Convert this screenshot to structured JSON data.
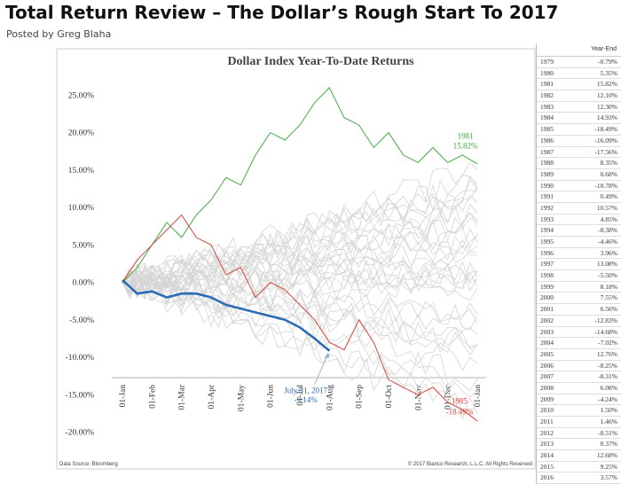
{
  "page": {
    "title": "Total Return Review – The Dollar’s Rough Start To 2017",
    "byline": "Posted by Greg Blaha"
  },
  "table": {
    "header": "Year-End",
    "rows": [
      {
        "year": "1979",
        "value": "-0.79%"
      },
      {
        "year": "1980",
        "value": "5.35%"
      },
      {
        "year": "1981",
        "value": "15.82%"
      },
      {
        "year": "1982",
        "value": "12.10%"
      },
      {
        "year": "1983",
        "value": "12.30%"
      },
      {
        "year": "1984",
        "value": "14.93%"
      },
      {
        "year": "1985",
        "value": "-18.49%"
      },
      {
        "year": "1986",
        "value": "-16.09%"
      },
      {
        "year": "1987",
        "value": "-17.56%"
      },
      {
        "year": "1988",
        "value": "8.35%"
      },
      {
        "year": "1989",
        "value": "0.68%"
      },
      {
        "year": "1990",
        "value": "-10.78%"
      },
      {
        "year": "1991",
        "value": "0.49%"
      },
      {
        "year": "1992",
        "value": "10.57%"
      },
      {
        "year": "1993",
        "value": "4.85%"
      },
      {
        "year": "1994",
        "value": "-8.38%"
      },
      {
        "year": "1995",
        "value": "-4.46%"
      },
      {
        "year": "1996",
        "value": "3.96%"
      },
      {
        "year": "1997",
        "value": "13.08%"
      },
      {
        "year": "1998",
        "value": "-5.50%"
      },
      {
        "year": "1999",
        "value": "8.18%"
      },
      {
        "year": "2000",
        "value": "7.55%"
      },
      {
        "year": "2001",
        "value": "6.56%"
      },
      {
        "year": "2002",
        "value": "-12.83%"
      },
      {
        "year": "2003",
        "value": "-14.68%"
      },
      {
        "year": "2004",
        "value": "-7.02%"
      },
      {
        "year": "2005",
        "value": "12.76%"
      },
      {
        "year": "2006",
        "value": "-8.25%"
      },
      {
        "year": "2007",
        "value": "-8.31%"
      },
      {
        "year": "2008",
        "value": "6.08%"
      },
      {
        "year": "2009",
        "value": "-4.24%"
      },
      {
        "year": "2010",
        "value": "1.50%"
      },
      {
        "year": "2011",
        "value": "1.46%"
      },
      {
        "year": "2012",
        "value": "-0.51%"
      },
      {
        "year": "2013",
        "value": "0.37%"
      },
      {
        "year": "2014",
        "value": "12.68%"
      },
      {
        "year": "2015",
        "value": "9.25%"
      },
      {
        "year": "2016",
        "value": "3.57%"
      }
    ]
  },
  "chart_data": {
    "type": "line",
    "title": "Dollar Index Year-To-Date Returns",
    "xlabel": "",
    "ylabel": "",
    "x_tick_labels": [
      "01-Jan",
      "01-Feb",
      "01-Mar",
      "01-Apr",
      "01-May",
      "01-Jun",
      "01-Jul",
      "01-Aug",
      "01-Sep",
      "01-Oct",
      "01-Nov",
      "01-Dec",
      "01-Jan"
    ],
    "y_tick_labels": [
      "-20.00%",
      "-15.00%",
      "-10.00%",
      "-5.00%",
      "0.00%",
      "5.00%",
      "10.00%",
      "15.00%",
      "20.00%",
      "25.00%"
    ],
    "y_ticks": [
      -20,
      -15,
      -10,
      -5,
      0,
      5,
      10,
      15,
      20,
      25
    ],
    "ylim": [
      -21,
      28
    ],
    "x_unit": "month",
    "xlim": [
      0,
      12
    ],
    "grid": false,
    "colors": {
      "highlight_2017": "#2a6db5",
      "year_1981": "#44aa44",
      "year_1985": "#d9423a",
      "other_years": "#d4d4d4"
    },
    "other_years_end_values": [
      -0.79,
      5.35,
      12.1,
      12.3,
      14.93,
      -16.09,
      -17.56,
      8.35,
      0.68,
      -10.78,
      0.49,
      10.57,
      4.85,
      -8.38,
      -4.46,
      3.96,
      13.08,
      -5.5,
      8.18,
      7.55,
      6.56,
      -12.83,
      -14.68,
      -7.02,
      12.76,
      -8.25,
      -8.31,
      6.08,
      -4.24,
      1.5,
      1.46,
      -0.51,
      0.37,
      12.68,
      9.25,
      3.57
    ],
    "series": [
      {
        "name": "1981",
        "color": "#44aa44",
        "x": [
          0,
          0.5,
          1,
          1.5,
          2,
          2.5,
          3,
          3.5,
          4,
          4.5,
          5,
          5.5,
          6,
          6.5,
          7,
          7.5,
          8,
          8.5,
          9,
          9.5,
          10,
          10.5,
          11,
          11.5,
          12
        ],
        "y": [
          0,
          2,
          5,
          8,
          6,
          9,
          11,
          14,
          13,
          17,
          20,
          19,
          21,
          24,
          26,
          22,
          21,
          18,
          20,
          17,
          16,
          18,
          16,
          17,
          15.82
        ]
      },
      {
        "name": "1985",
        "color": "#d9423a",
        "x": [
          0,
          0.5,
          1,
          1.5,
          2,
          2.5,
          3,
          3.5,
          4,
          4.5,
          5,
          5.5,
          6,
          6.5,
          7,
          7.5,
          8,
          8.5,
          9,
          9.5,
          10,
          10.5,
          11,
          11.5,
          12
        ],
        "y": [
          0,
          3,
          5,
          7,
          9,
          6,
          5,
          1,
          2,
          -2,
          0,
          -1,
          -3,
          -5,
          -8,
          -9,
          -5,
          -8,
          -13,
          -14,
          -15,
          -14,
          -16,
          -17,
          -18.49
        ]
      },
      {
        "name": "2017",
        "color": "#2a6db5",
        "x": [
          0,
          0.5,
          1,
          1.5,
          2,
          2.5,
          3,
          3.5,
          4,
          4.5,
          5,
          5.5,
          6,
          6.5,
          7
        ],
        "y": [
          0.3,
          -1.5,
          -1.2,
          -2,
          -1.5,
          -1.5,
          -2,
          -3,
          -3.5,
          -4,
          -4.5,
          -5,
          -6,
          -7.5,
          -9.14
        ]
      }
    ],
    "annotations": [
      {
        "label": "1981",
        "value_label": "15.82%",
        "color": "#44aa44"
      },
      {
        "label": "1985",
        "value_label": "-18.49%",
        "color": "#d9423a"
      },
      {
        "label": "July 31, 2017",
        "value_label": "-9.14%",
        "color": "#2a6db5"
      }
    ],
    "footer_left": "Data Source: Bloomberg",
    "footer_right": "© 2017 Bianco Research, L.L.C. All Rights Reserved"
  }
}
